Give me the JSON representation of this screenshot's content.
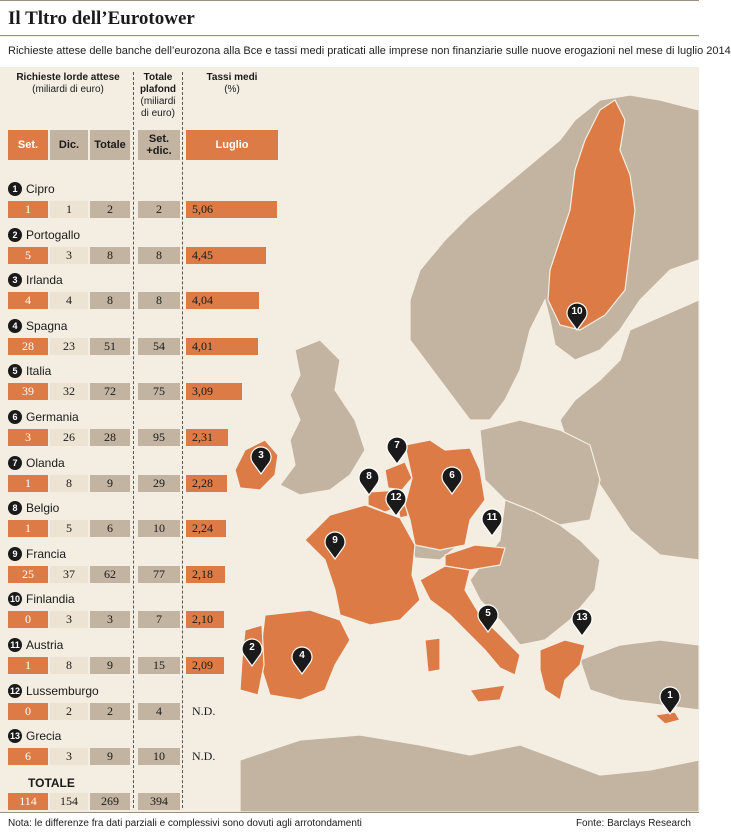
{
  "title": "Il Tltro dell’Eurotower",
  "subtitle": "Richieste attese delle banche dell’eurozona alla Bce e tassi medi praticati alle imprese non finanziarie sulle nuove erogazioni nel mese di luglio 2014",
  "headers": {
    "richieste": "Richieste lorde attese",
    "richieste_unit": "(miliardi di euro)",
    "plafond": "Totale plafond",
    "plafond_unit": "(miliardi di euro)",
    "tassi": "Tassi medi",
    "tassi_unit": "(%)",
    "set": "Set.",
    "dic": "Dic.",
    "totale": "Totale",
    "setdic": "Set. +dic.",
    "luglio": "Luglio"
  },
  "colors": {
    "accent": "#dc7b45",
    "grey": "#c2b4a0",
    "light": "#ece3d3",
    "land": "#c2b4a0",
    "sea": "#f4eee2"
  },
  "chart_data": {
    "type": "table",
    "columns": [
      "Set.",
      "Dic.",
      "Totale",
      "Set. +dic.",
      "Luglio"
    ],
    "rows": [
      {
        "n": "1",
        "country": "Cipro",
        "set": "1",
        "dic": "1",
        "tot": "2",
        "plafond": "2",
        "rate": "5,06",
        "rate_value": 5.06
      },
      {
        "n": "2",
        "country": "Portogallo",
        "set": "5",
        "dic": "3",
        "tot": "8",
        "plafond": "8",
        "rate": "4,45",
        "rate_value": 4.45
      },
      {
        "n": "3",
        "country": "Irlanda",
        "set": "4",
        "dic": "4",
        "tot": "8",
        "plafond": "8",
        "rate": "4,04",
        "rate_value": 4.04
      },
      {
        "n": "4",
        "country": "Spagna",
        "set": "28",
        "dic": "23",
        "tot": "51",
        "plafond": "54",
        "rate": "4,01",
        "rate_value": 4.01
      },
      {
        "n": "5",
        "country": "Italia",
        "set": "39",
        "dic": "32",
        "tot": "72",
        "plafond": "75",
        "rate": "3,09",
        "rate_value": 3.09
      },
      {
        "n": "6",
        "country": "Germania",
        "set": "3",
        "dic": "26",
        "tot": "28",
        "plafond": "95",
        "rate": "2,31",
        "rate_value": 2.31
      },
      {
        "n": "7",
        "country": "Olanda",
        "set": "1",
        "dic": "8",
        "tot": "9",
        "plafond": "29",
        "rate": "2,28",
        "rate_value": 2.28
      },
      {
        "n": "8",
        "country": "Belgio",
        "set": "1",
        "dic": "5",
        "tot": "6",
        "plafond": "10",
        "rate": "2,24",
        "rate_value": 2.24
      },
      {
        "n": "9",
        "country": "Francia",
        "set": "25",
        "dic": "37",
        "tot": "62",
        "plafond": "77",
        "rate": "2,18",
        "rate_value": 2.18
      },
      {
        "n": "10",
        "country": "Finlandia",
        "set": "0",
        "dic": "3",
        "tot": "3",
        "plafond": "7",
        "rate": "2,10",
        "rate_value": 2.1
      },
      {
        "n": "11",
        "country": "Austria",
        "set": "1",
        "dic": "8",
        "tot": "9",
        "plafond": "15",
        "rate": "2,09",
        "rate_value": 2.09
      },
      {
        "n": "12",
        "country": "Lussemburgo",
        "set": "0",
        "dic": "2",
        "tot": "2",
        "plafond": "4",
        "rate": "N.D.",
        "rate_value": null
      },
      {
        "n": "13",
        "country": "Grecia",
        "set": "6",
        "dic": "3",
        "tot": "9",
        "plafond": "10",
        "rate": "N.D.",
        "rate_value": null
      }
    ],
    "total": {
      "label": "TOTALE",
      "set": "114",
      "dic": "154",
      "tot": "269",
      "plafond": "394"
    }
  },
  "footer": {
    "note": "Nota: le differenze fra dati parziali e complessivi sono dovuti agli arrotondamenti",
    "source": "Fonte: Barclays Research"
  }
}
